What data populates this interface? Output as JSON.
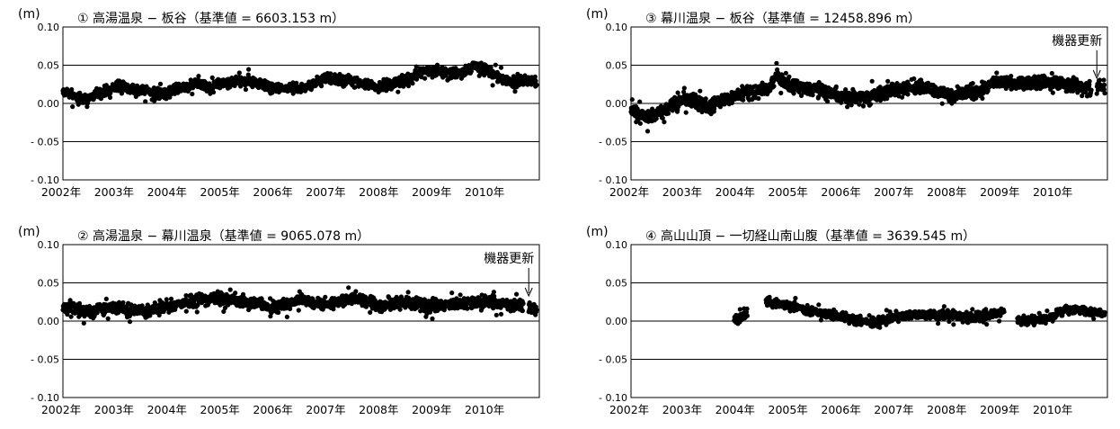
{
  "chart_data": [
    {
      "type": "scatter",
      "unit": "(m)",
      "title": "① 高湯温泉 − 板谷（基準値 = 6603.153 m）",
      "ylim": [
        -0.1,
        0.1
      ],
      "yticks": [
        "0.10",
        "0.05",
        "0.00",
        "- 0.05",
        "- 0.10"
      ],
      "xlim": [
        2002.0,
        2011.0
      ],
      "xticks": [
        "2002年",
        "2003年",
        "2004年",
        "2005年",
        "2006年",
        "2007年",
        "2008年",
        "2009年",
        "2010年"
      ],
      "grid": true,
      "color": "#000000",
      "annotation": null,
      "series": [
        {
          "coverage": [
            [
              2002.0,
              2010.95
            ]
          ],
          "trend": [
            [
              2002.0,
              0.015
            ],
            [
              2002.4,
              0.005
            ],
            [
              2002.6,
              0.012
            ],
            [
              2003.0,
              0.022
            ],
            [
              2003.5,
              0.018
            ],
            [
              2003.8,
              0.012
            ],
            [
              2004.2,
              0.02
            ],
            [
              2004.5,
              0.026
            ],
            [
              2004.8,
              0.02
            ],
            [
              2005.0,
              0.028
            ],
            [
              2005.5,
              0.03
            ],
            [
              2006.0,
              0.02
            ],
            [
              2006.5,
              0.02
            ],
            [
              2007.0,
              0.033
            ],
            [
              2007.5,
              0.028
            ],
            [
              2008.0,
              0.022
            ],
            [
              2008.5,
              0.03
            ],
            [
              2008.8,
              0.042
            ],
            [
              2009.2,
              0.042
            ],
            [
              2009.5,
              0.038
            ],
            [
              2009.8,
              0.05
            ],
            [
              2010.2,
              0.035
            ],
            [
              2010.5,
              0.028
            ],
            [
              2010.95,
              0.03
            ]
          ],
          "scatter": 0.006
        }
      ]
    },
    {
      "type": "scatter",
      "unit": "(m)",
      "title": "③ 幕川温泉 − 板谷（基準値 = 12458.896 m）",
      "ylim": [
        -0.1,
        0.1
      ],
      "yticks": [
        "0.10",
        "0.05",
        "0.00",
        "- 0.05",
        "- 0.10"
      ],
      "xlim": [
        2002.0,
        2011.0
      ],
      "xticks": [
        "2002年",
        "2003年",
        "2004年",
        "2005年",
        "2006年",
        "2007年",
        "2008年",
        "2009年",
        "2010年"
      ],
      "grid": true,
      "color": "#000000",
      "annotation": {
        "text": "機器更新",
        "x": 2010.8
      },
      "series": [
        {
          "coverage": [
            [
              2002.0,
              2010.7
            ],
            [
              2010.8,
              2010.95
            ]
          ],
          "trend": [
            [
              2002.0,
              -0.01
            ],
            [
              2002.3,
              -0.02
            ],
            [
              2002.6,
              -0.01
            ],
            [
              2003.0,
              0.008
            ],
            [
              2003.5,
              -0.005
            ],
            [
              2003.8,
              0.005
            ],
            [
              2004.2,
              0.015
            ],
            [
              2004.6,
              0.018
            ],
            [
              2004.75,
              0.035
            ],
            [
              2005.0,
              0.025
            ],
            [
              2005.5,
              0.018
            ],
            [
              2006.0,
              0.008
            ],
            [
              2006.5,
              0.008
            ],
            [
              2007.0,
              0.018
            ],
            [
              2007.5,
              0.022
            ],
            [
              2008.0,
              0.01
            ],
            [
              2008.5,
              0.015
            ],
            [
              2008.9,
              0.028
            ],
            [
              2009.5,
              0.025
            ],
            [
              2010.0,
              0.028
            ],
            [
              2010.7,
              0.018
            ],
            [
              2010.8,
              0.022
            ],
            [
              2010.95,
              0.022
            ]
          ],
          "scatter": 0.008
        }
      ]
    },
    {
      "type": "scatter",
      "unit": "(m)",
      "title": "② 高湯温泉 − 幕川温泉（基準値 = 9065.078 m）",
      "ylim": [
        -0.1,
        0.1
      ],
      "yticks": [
        "0.10",
        "0.05",
        "0.00",
        "- 0.05",
        "- 0.10"
      ],
      "xlim": [
        2002.0,
        2011.0
      ],
      "xticks": [
        "2002年",
        "2003年",
        "2004年",
        "2005年",
        "2006年",
        "2007年",
        "2008年",
        "2009年",
        "2010年"
      ],
      "grid": true,
      "color": "#000000",
      "annotation": {
        "text": "機器更新",
        "x": 2010.8
      },
      "series": [
        {
          "coverage": [
            [
              2002.0,
              2010.7
            ],
            [
              2010.8,
              2010.95
            ]
          ],
          "trend": [
            [
              2002.0,
              0.018
            ],
            [
              2002.5,
              0.012
            ],
            [
              2003.0,
              0.018
            ],
            [
              2003.5,
              0.012
            ],
            [
              2004.0,
              0.02
            ],
            [
              2004.5,
              0.028
            ],
            [
              2005.0,
              0.03
            ],
            [
              2005.5,
              0.025
            ],
            [
              2006.0,
              0.018
            ],
            [
              2006.5,
              0.028
            ],
            [
              2007.0,
              0.022
            ],
            [
              2007.5,
              0.03
            ],
            [
              2008.0,
              0.02
            ],
            [
              2008.5,
              0.025
            ],
            [
              2009.0,
              0.02
            ],
            [
              2009.5,
              0.022
            ],
            [
              2010.0,
              0.025
            ],
            [
              2010.7,
              0.02
            ],
            [
              2010.8,
              0.018
            ],
            [
              2010.95,
              0.015
            ]
          ],
          "scatter": 0.007
        }
      ]
    },
    {
      "type": "scatter",
      "unit": "(m)",
      "title": "④ 高山山頂 − 一切経山南山腹（基準値 = 3639.545 m）",
      "ylim": [
        -0.1,
        0.1
      ],
      "yticks": [
        "0.10",
        "0.05",
        "0.00",
        "- 0.05",
        "- 0.10"
      ],
      "xlim": [
        2002.0,
        2011.0
      ],
      "xticks": [
        "2002年",
        "2003年",
        "2004年",
        "2005年",
        "2006年",
        "2007年",
        "2008年",
        "2009年",
        "2010年"
      ],
      "grid": true,
      "color": "#000000",
      "annotation": null,
      "series": [
        {
          "coverage": [
            [
              2003.95,
              2004.2
            ],
            [
              2004.55,
              2009.05
            ],
            [
              2009.3,
              2010.95
            ]
          ],
          "trend": [
            [
              2003.95,
              0.0
            ],
            [
              2004.2,
              0.01
            ],
            [
              2004.55,
              0.025
            ],
            [
              2005.0,
              0.02
            ],
            [
              2005.5,
              0.012
            ],
            [
              2006.0,
              0.005
            ],
            [
              2006.5,
              -0.002
            ],
            [
              2007.0,
              0.005
            ],
            [
              2007.5,
              0.01
            ],
            [
              2008.0,
              0.008
            ],
            [
              2008.5,
              0.005
            ],
            [
              2009.05,
              0.012
            ],
            [
              2009.3,
              0.0
            ],
            [
              2009.8,
              0.002
            ],
            [
              2010.2,
              0.015
            ],
            [
              2010.95,
              0.01
            ]
          ],
          "scatter": 0.005
        }
      ]
    }
  ]
}
